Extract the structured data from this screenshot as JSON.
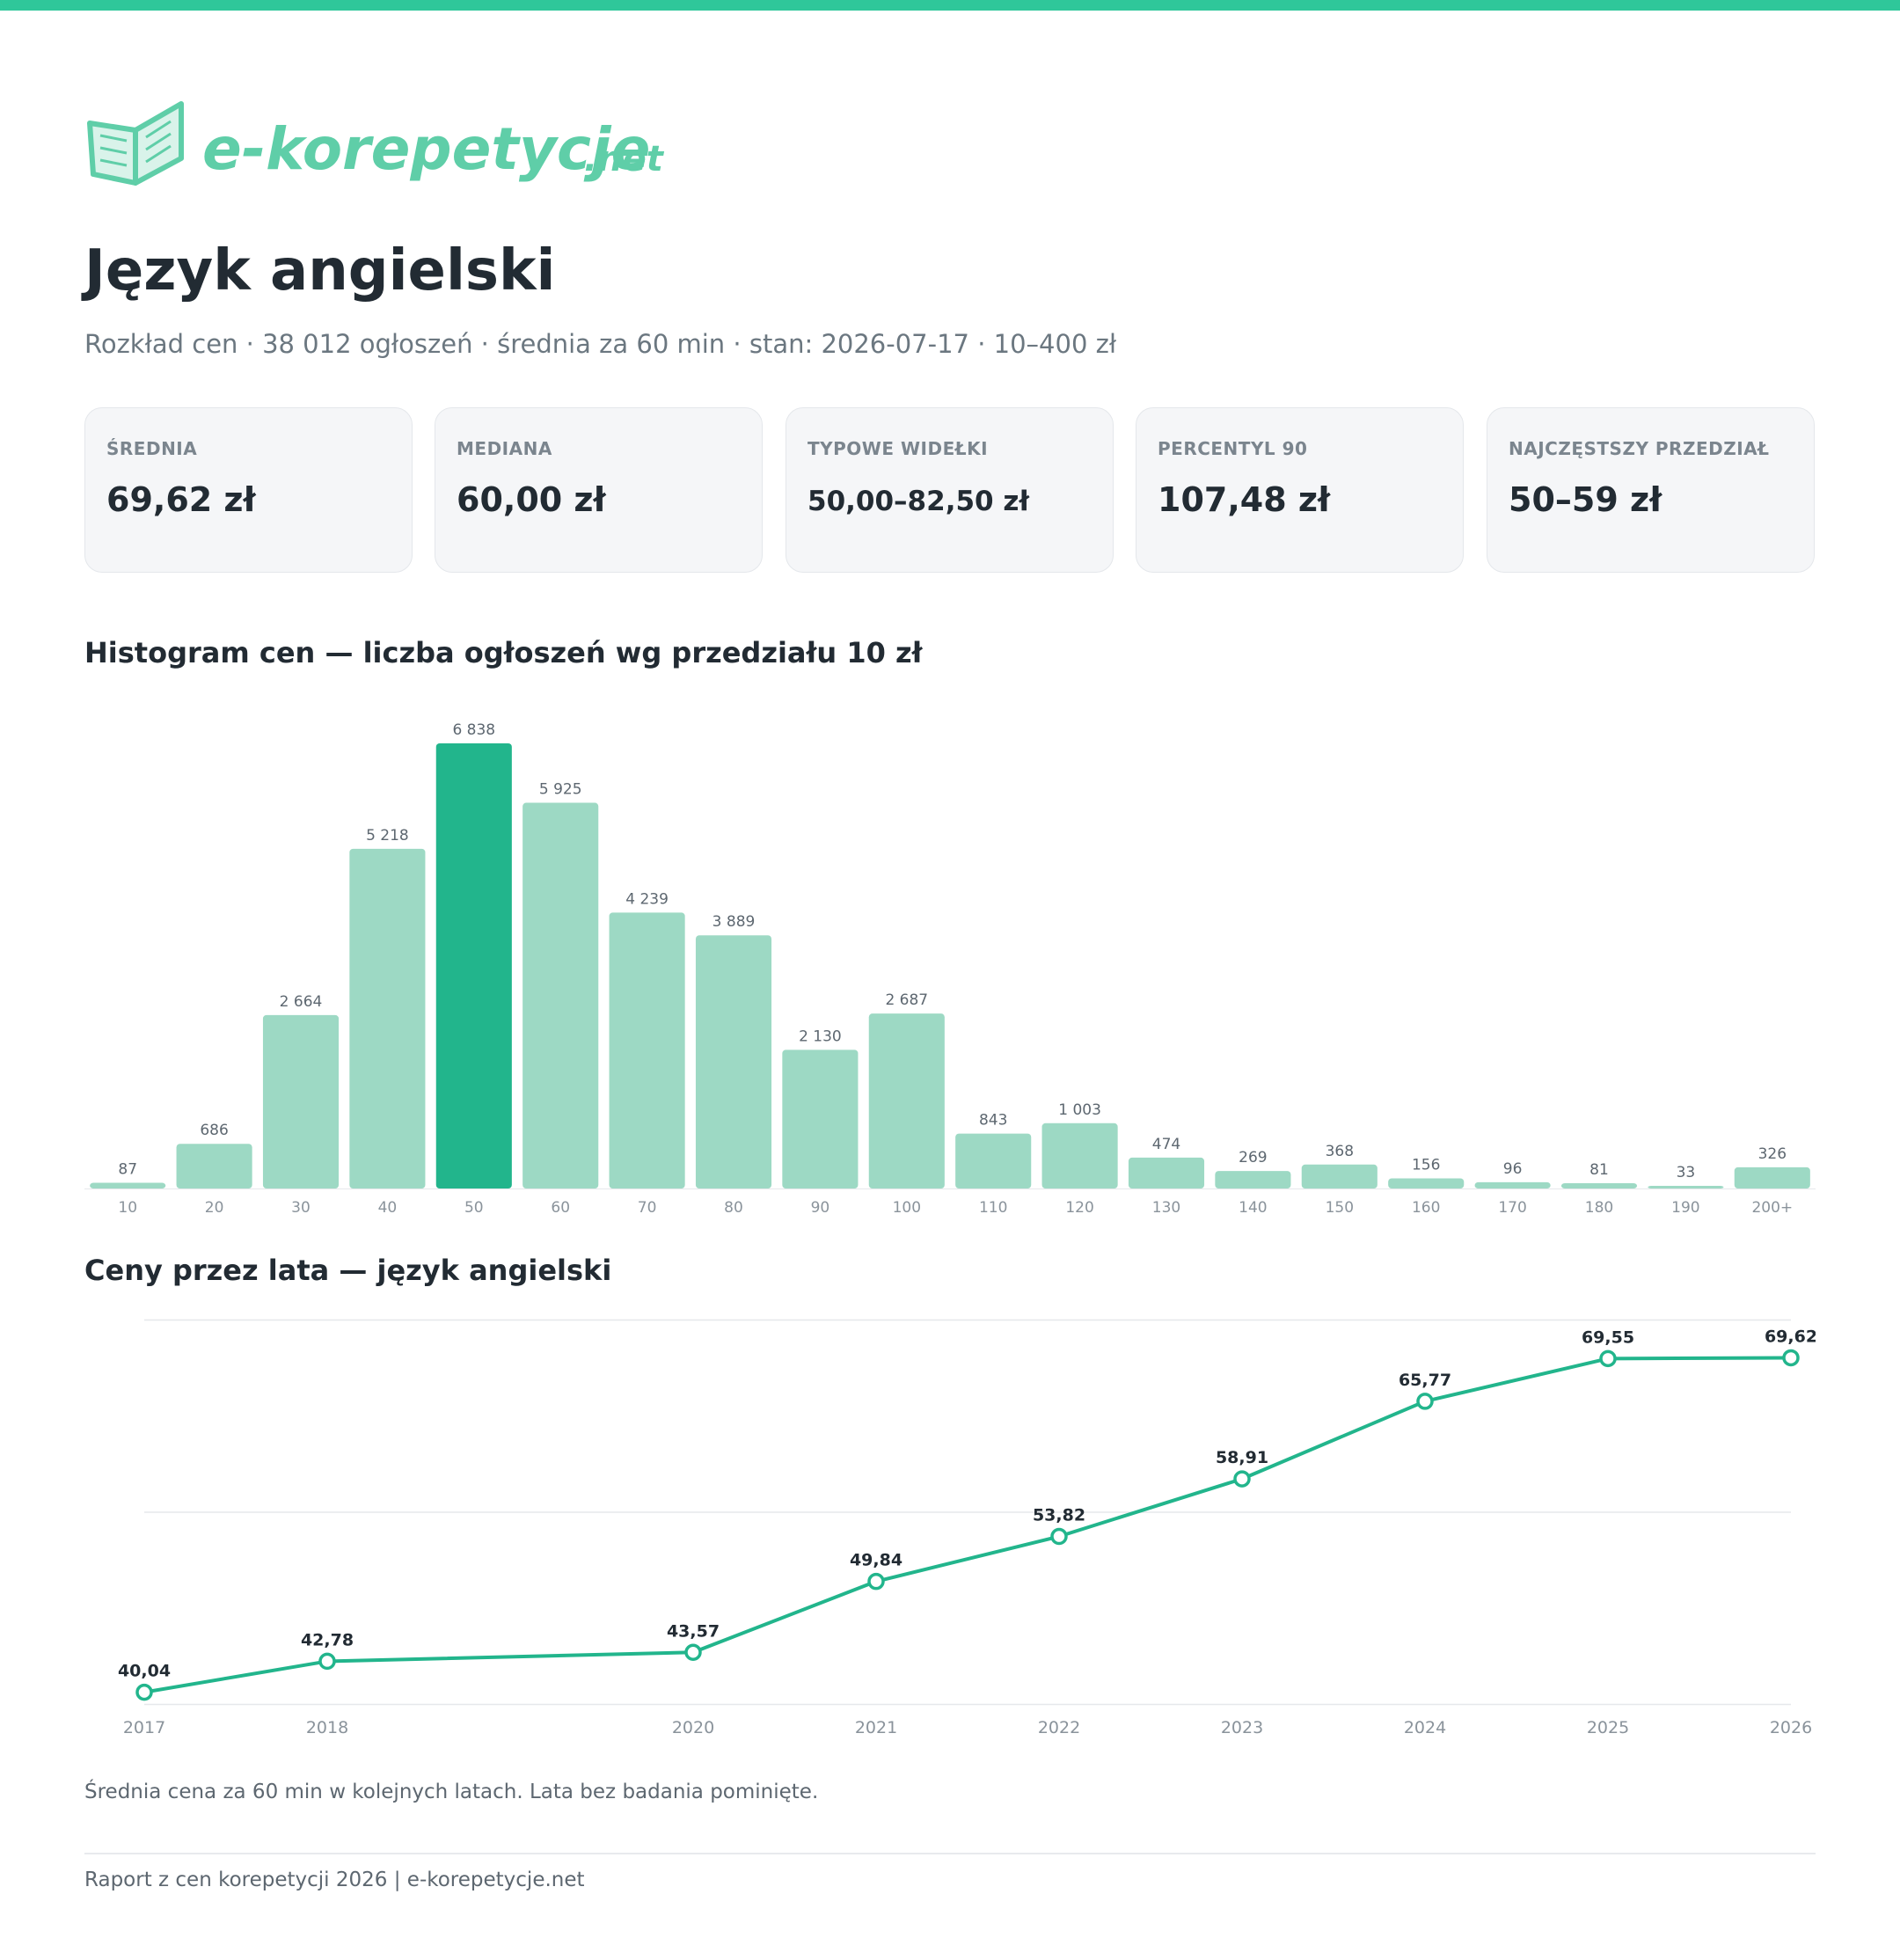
{
  "brand": {
    "logo_text": "e-korepetycje",
    "logo_suffix": ".net",
    "accent_color": "#2fc79a"
  },
  "page": {
    "title": "Język angielski",
    "subtitle": "Rozkład cen · 38 012 ogłoszeń · średnia za 60 min · stan: 2026-07-17 · 10–400 zł"
  },
  "stats": [
    {
      "label": "ŚREDNIA",
      "value": "69,62 zł"
    },
    {
      "label": "MEDIANA",
      "value": "60,00 zł"
    },
    {
      "label": "TYPOWE WIDEŁKI",
      "value": "50,00–82,50 zł"
    },
    {
      "label": "PERCENTYL 90",
      "value": "107,48 zł"
    },
    {
      "label": "NAJCZĘSTSZY PRZEDZIAŁ",
      "value": "50–59 zł"
    }
  ],
  "chart_data": [
    {
      "type": "bar",
      "title": "Histogram cen — liczba ogłoszeń wg przedziału 10 zł",
      "categories": [
        "10",
        "20",
        "30",
        "40",
        "50",
        "60",
        "70",
        "80",
        "90",
        "100",
        "110",
        "120",
        "130",
        "140",
        "150",
        "160",
        "170",
        "180",
        "190",
        "200+"
      ],
      "values": [
        87,
        686,
        2664,
        5218,
        6838,
        5925,
        4239,
        3889,
        2130,
        2687,
        843,
        1003,
        474,
        269,
        368,
        156,
        96,
        81,
        33,
        326
      ],
      "value_labels": [
        "87",
        "686",
        "2 664",
        "5 218",
        "6 838",
        "5 925",
        "4 239",
        "3 889",
        "2 130",
        "2 687",
        "843",
        "1 003",
        "474",
        "269",
        "368",
        "156",
        "96",
        "81",
        "33",
        "326"
      ],
      "highlight_index": 4,
      "bar_color": "#9dd9c4",
      "highlight_color": "#22b58c",
      "ylim": [
        0,
        6838
      ],
      "grid": false,
      "xlabel": "",
      "ylabel": ""
    },
    {
      "type": "line",
      "title": "Ceny przez lata — język angielski",
      "x": [
        2017,
        2018,
        2020,
        2021,
        2022,
        2023,
        2024,
        2025,
        2026
      ],
      "x_labels": [
        "2017",
        "2018",
        "2020",
        "2021",
        "2022",
        "2023",
        "2024",
        "2025",
        "2026"
      ],
      "values": [
        40.04,
        42.78,
        43.57,
        49.84,
        53.82,
        58.91,
        65.77,
        69.55,
        69.62
      ],
      "value_labels": [
        "40,04",
        "42,78",
        "43,57",
        "49,84",
        "53,82",
        "58,91",
        "65,77",
        "69,55",
        "69,62"
      ],
      "line_color": "#22b58c",
      "ylim": [
        39.0,
        73.0
      ],
      "grid": true,
      "xlabel": "",
      "ylabel": ""
    }
  ],
  "note": "Średnia cena za 60 min w kolejnych latach. Lata bez badania pominięte.",
  "footer": "Raport z cen korepetycji 2026 | e-korepetycje.net"
}
